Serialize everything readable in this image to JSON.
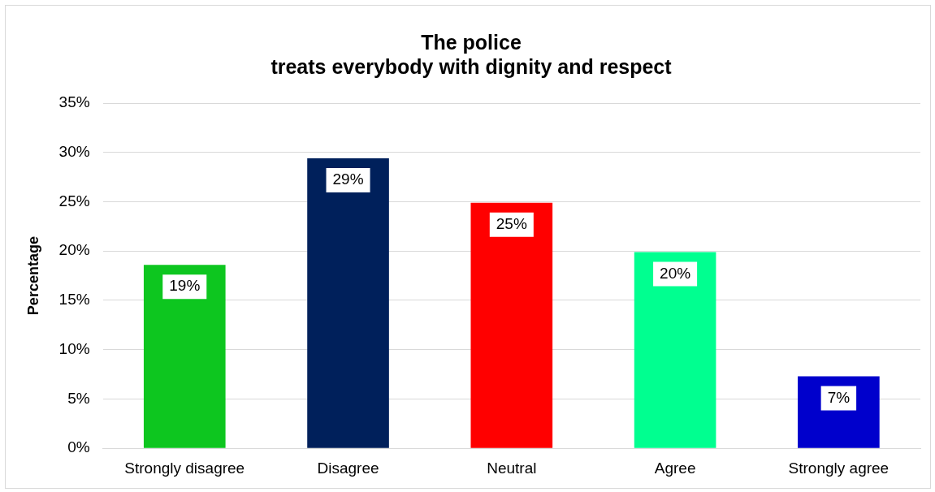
{
  "chart_data": {
    "type": "bar",
    "title": "The police\ntreats everybody with dignity and respect",
    "ylabel": "Percentage",
    "categories": [
      "Strongly disagree",
      "Disagree",
      "Neutral",
      "Agree",
      "Strongly agree"
    ],
    "values": [
      18.6,
      29.4,
      24.9,
      19.9,
      7.3
    ],
    "colors": [
      "#0dc61f",
      "#00205b",
      "#ff0000",
      "#00ff90",
      "#0000cc"
    ],
    "value_labels": [
      "19%",
      "29%",
      "25%",
      "20%",
      "7%"
    ],
    "ylim": [
      0,
      35
    ],
    "yticks": [
      {
        "value": 0,
        "label": "0%"
      },
      {
        "value": 5,
        "label": "5%"
      },
      {
        "value": 10,
        "label": "10%"
      },
      {
        "value": 15,
        "label": "15%"
      },
      {
        "value": 20,
        "label": "20%"
      },
      {
        "value": 25,
        "label": "25%"
      },
      {
        "value": 30,
        "label": "30%"
      },
      {
        "value": 35,
        "label": "35%"
      }
    ],
    "grid": "y",
    "legend": false
  }
}
